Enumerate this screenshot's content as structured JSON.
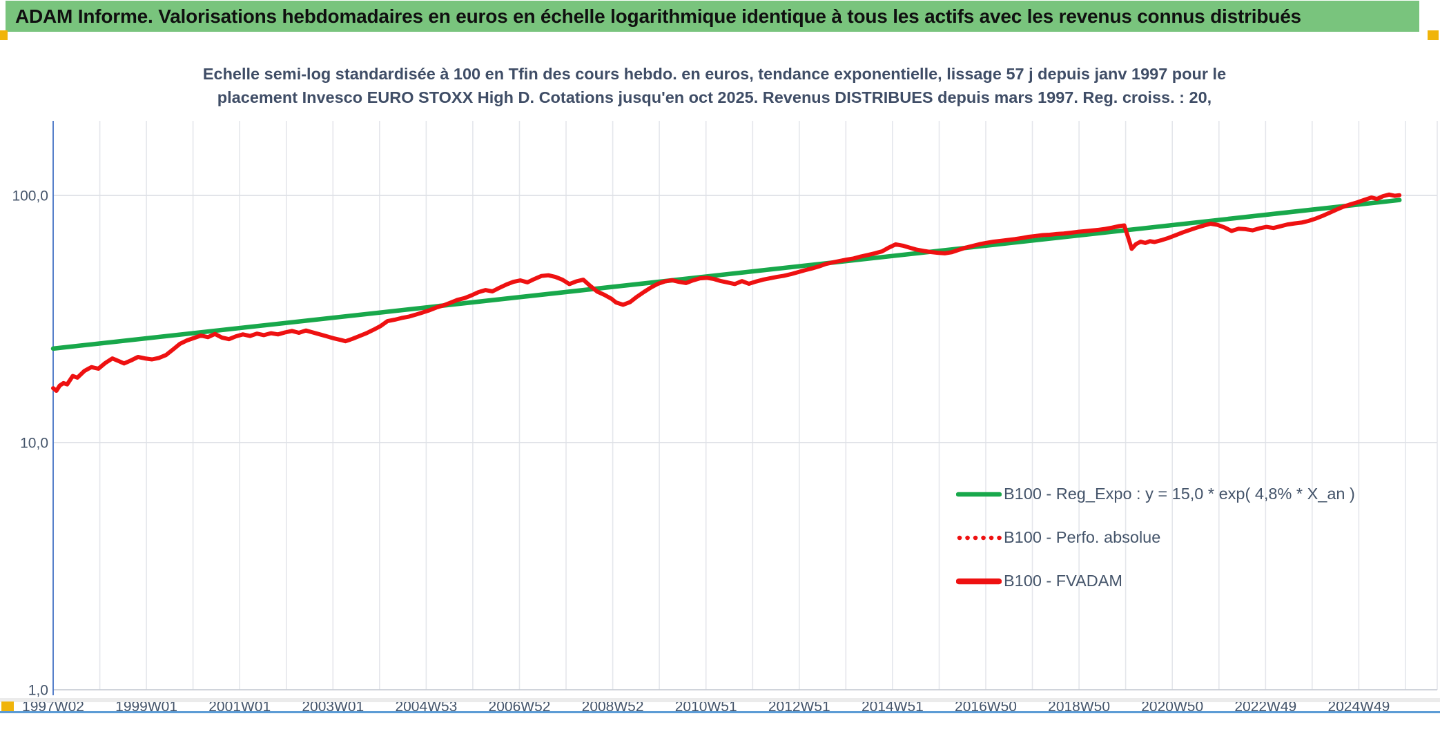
{
  "banner": {
    "text": "ADAM Informe. Valorisations hebdomadaires en euros en échelle logarithmique identique à tous les actifs avec les revenus connus distribués",
    "background_color": "#79C47D",
    "handle_color": "#F0B40A"
  },
  "chart_data": {
    "type": "line",
    "title_lines": [
      "Echelle semi-log standardisée à 100 en Tfin des cours hebdo. en euros, tendance exponentielle, lissage 57 j depuis janv 1997 pour le",
      "placement Invesco EURO STOXX High D. Cotations jusqu'en oct 2025. Revenus DISTRIBUES depuis mars 1997. Reg. croiss. : 20,"
    ],
    "grid": true,
    "legend_position": "inside-right-bottom",
    "y_axis": {
      "scale": "log",
      "range": [
        1,
        200
      ],
      "ticks": [
        {
          "label": "100,0",
          "value": 100
        },
        {
          "label": "10,0",
          "value": 10
        },
        {
          "label": "1,0",
          "value": 1
        }
      ]
    },
    "x_axis": {
      "unit": "ISO week",
      "start_year": 1997.03,
      "end_year": 2026.7,
      "gridline_interval_years": 1,
      "label_interval_years": 2,
      "tick_labels": [
        "1997W02",
        "1999W01",
        "2001W01",
        "2003W01",
        "2004W53",
        "2006W52",
        "2008W52",
        "2010W51",
        "2012W51",
        "2014W51",
        "2016W50",
        "2018W50",
        "2020W50",
        "2022W49",
        "2024W49"
      ]
    },
    "series": [
      {
        "name": "B100 - Reg_Expo : y = 15,0 * exp( 4,8% *  X_an )",
        "color": "#18A84B",
        "style": "solid",
        "width": 6.5,
        "kind": "exponential-trend",
        "points": [
          [
            1997.03,
            24.0
          ],
          [
            2025.9,
            95.8
          ]
        ]
      },
      {
        "name": "B100 - Perfo. absolue",
        "color": "#EE1111",
        "style": "dotted",
        "width": 5.5,
        "points_key": "fvadam_points",
        "note": "overlaps the FVADAM curve"
      },
      {
        "name": "B100 - FVADAM",
        "color": "#EE1111",
        "style": "solid",
        "width": 6,
        "points_key": "fvadam_points"
      }
    ],
    "fvadam_points": [
      [
        1997.03,
        16.6
      ],
      [
        1997.1,
        16.2
      ],
      [
        1997.17,
        17.0
      ],
      [
        1997.25,
        17.4
      ],
      [
        1997.33,
        17.2
      ],
      [
        1997.45,
        18.6
      ],
      [
        1997.55,
        18.3
      ],
      [
        1997.7,
        19.5
      ],
      [
        1997.85,
        20.2
      ],
      [
        1998.0,
        19.9
      ],
      [
        1998.15,
        21.0
      ],
      [
        1998.3,
        21.9
      ],
      [
        1998.45,
        21.3
      ],
      [
        1998.55,
        20.9
      ],
      [
        1998.7,
        21.5
      ],
      [
        1998.85,
        22.2
      ],
      [
        1999.0,
        21.9
      ],
      [
        1999.15,
        21.7
      ],
      [
        1999.3,
        22.0
      ],
      [
        1999.45,
        22.6
      ],
      [
        1999.6,
        23.8
      ],
      [
        1999.75,
        25.1
      ],
      [
        1999.9,
        25.9
      ],
      [
        2000.05,
        26.5
      ],
      [
        2000.2,
        27.1
      ],
      [
        2000.35,
        26.7
      ],
      [
        2000.5,
        27.5
      ],
      [
        2000.65,
        26.6
      ],
      [
        2000.8,
        26.2
      ],
      [
        2000.95,
        26.9
      ],
      [
        2001.1,
        27.4
      ],
      [
        2001.25,
        27.0
      ],
      [
        2001.4,
        27.6
      ],
      [
        2001.55,
        27.2
      ],
      [
        2001.7,
        27.7
      ],
      [
        2001.85,
        27.4
      ],
      [
        2002.0,
        27.9
      ],
      [
        2002.15,
        28.3
      ],
      [
        2002.3,
        27.8
      ],
      [
        2002.45,
        28.4
      ],
      [
        2002.6,
        27.9
      ],
      [
        2002.75,
        27.4
      ],
      [
        2002.9,
        26.9
      ],
      [
        2003.05,
        26.4
      ],
      [
        2003.2,
        26.0
      ],
      [
        2003.3,
        25.7
      ],
      [
        2003.45,
        26.3
      ],
      [
        2003.6,
        27.0
      ],
      [
        2003.75,
        27.7
      ],
      [
        2003.9,
        28.6
      ],
      [
        2004.05,
        29.6
      ],
      [
        2004.2,
        31.0
      ],
      [
        2004.35,
        31.4
      ],
      [
        2004.5,
        31.9
      ],
      [
        2004.65,
        32.3
      ],
      [
        2004.8,
        32.9
      ],
      [
        2004.95,
        33.6
      ],
      [
        2005.1,
        34.3
      ],
      [
        2005.25,
        35.2
      ],
      [
        2005.4,
        35.9
      ],
      [
        2005.55,
        36.8
      ],
      [
        2005.7,
        37.8
      ],
      [
        2005.85,
        38.4
      ],
      [
        2006.0,
        39.4
      ],
      [
        2006.15,
        40.6
      ],
      [
        2006.3,
        41.4
      ],
      [
        2006.45,
        40.9
      ],
      [
        2006.6,
        42.3
      ],
      [
        2006.75,
        43.6
      ],
      [
        2006.9,
        44.7
      ],
      [
        2007.05,
        45.3
      ],
      [
        2007.2,
        44.5
      ],
      [
        2007.35,
        45.9
      ],
      [
        2007.5,
        47.2
      ],
      [
        2007.65,
        47.5
      ],
      [
        2007.8,
        46.8
      ],
      [
        2007.95,
        45.6
      ],
      [
        2008.1,
        43.8
      ],
      [
        2008.25,
        44.9
      ],
      [
        2008.4,
        45.6
      ],
      [
        2008.55,
        43.0
      ],
      [
        2008.7,
        40.8
      ],
      [
        2008.85,
        39.6
      ],
      [
        2009.0,
        38.2
      ],
      [
        2009.1,
        36.9
      ],
      [
        2009.25,
        36.1
      ],
      [
        2009.4,
        37.0
      ],
      [
        2009.55,
        38.9
      ],
      [
        2009.7,
        40.7
      ],
      [
        2009.85,
        42.4
      ],
      [
        2010.0,
        43.9
      ],
      [
        2010.15,
        44.9
      ],
      [
        2010.3,
        45.4
      ],
      [
        2010.45,
        44.7
      ],
      [
        2010.6,
        44.2
      ],
      [
        2010.75,
        45.3
      ],
      [
        2010.9,
        46.2
      ],
      [
        2011.05,
        46.4
      ],
      [
        2011.2,
        45.9
      ],
      [
        2011.35,
        45.0
      ],
      [
        2011.5,
        44.4
      ],
      [
        2011.65,
        43.8
      ],
      [
        2011.8,
        45.0
      ],
      [
        2011.95,
        43.9
      ],
      [
        2012.1,
        44.8
      ],
      [
        2012.25,
        45.6
      ],
      [
        2012.4,
        46.2
      ],
      [
        2012.55,
        46.8
      ],
      [
        2012.7,
        47.3
      ],
      [
        2012.85,
        48.0
      ],
      [
        2013.0,
        48.9
      ],
      [
        2013.15,
        49.8
      ],
      [
        2013.3,
        50.6
      ],
      [
        2013.45,
        51.6
      ],
      [
        2013.6,
        52.8
      ],
      [
        2013.75,
        53.6
      ],
      [
        2013.9,
        54.3
      ],
      [
        2014.05,
        55.0
      ],
      [
        2014.2,
        55.6
      ],
      [
        2014.35,
        56.6
      ],
      [
        2014.5,
        57.4
      ],
      [
        2014.65,
        58.3
      ],
      [
        2014.8,
        59.3
      ],
      [
        2014.95,
        61.5
      ],
      [
        2015.1,
        63.4
      ],
      [
        2015.25,
        62.6
      ],
      [
        2015.4,
        61.4
      ],
      [
        2015.55,
        60.3
      ],
      [
        2015.7,
        59.6
      ],
      [
        2015.85,
        59.0
      ],
      [
        2016.0,
        58.6
      ],
      [
        2016.15,
        58.3
      ],
      [
        2016.3,
        58.9
      ],
      [
        2016.45,
        60.2
      ],
      [
        2016.6,
        61.5
      ],
      [
        2016.75,
        62.5
      ],
      [
        2016.9,
        63.5
      ],
      [
        2017.05,
        64.3
      ],
      [
        2017.2,
        65.0
      ],
      [
        2017.35,
        65.5
      ],
      [
        2017.5,
        66.0
      ],
      [
        2017.65,
        66.5
      ],
      [
        2017.8,
        67.2
      ],
      [
        2017.95,
        68.0
      ],
      [
        2018.1,
        68.5
      ],
      [
        2018.25,
        69.1
      ],
      [
        2018.4,
        69.3
      ],
      [
        2018.55,
        69.8
      ],
      [
        2018.7,
        70.1
      ],
      [
        2018.85,
        70.6
      ],
      [
        2019.0,
        71.2
      ],
      [
        2019.15,
        71.6
      ],
      [
        2019.3,
        72.1
      ],
      [
        2019.45,
        72.6
      ],
      [
        2019.6,
        73.2
      ],
      [
        2019.75,
        74.1
      ],
      [
        2019.9,
        75.2
      ],
      [
        2020.0,
        75.6
      ],
      [
        2020.08,
        68.0
      ],
      [
        2020.16,
        60.8
      ],
      [
        2020.25,
        63.5
      ],
      [
        2020.35,
        65.0
      ],
      [
        2020.45,
        64.2
      ],
      [
        2020.55,
        65.3
      ],
      [
        2020.65,
        64.8
      ],
      [
        2020.8,
        65.9
      ],
      [
        2020.95,
        67.3
      ],
      [
        2021.1,
        69.0
      ],
      [
        2021.25,
        70.8
      ],
      [
        2021.4,
        72.4
      ],
      [
        2021.55,
        74.0
      ],
      [
        2021.7,
        75.5
      ],
      [
        2021.85,
        76.8
      ],
      [
        2022.0,
        76.0
      ],
      [
        2022.15,
        74.2
      ],
      [
        2022.3,
        71.8
      ],
      [
        2022.45,
        73.3
      ],
      [
        2022.6,
        73.0
      ],
      [
        2022.75,
        72.2
      ],
      [
        2022.9,
        73.6
      ],
      [
        2023.05,
        74.6
      ],
      [
        2023.2,
        73.8
      ],
      [
        2023.35,
        75.0
      ],
      [
        2023.5,
        76.3
      ],
      [
        2023.65,
        77.0
      ],
      [
        2023.8,
        77.6
      ],
      [
        2023.95,
        78.8
      ],
      [
        2024.1,
        80.5
      ],
      [
        2024.25,
        82.6
      ],
      [
        2024.4,
        85.0
      ],
      [
        2024.55,
        87.6
      ],
      [
        2024.7,
        90.0
      ],
      [
        2024.85,
        92.0
      ],
      [
        2025.0,
        93.8
      ],
      [
        2025.15,
        95.9
      ],
      [
        2025.3,
        98.0
      ],
      [
        2025.42,
        96.8
      ],
      [
        2025.55,
        99.3
      ],
      [
        2025.68,
        100.8
      ],
      [
        2025.8,
        99.6
      ],
      [
        2025.9,
        100.2
      ]
    ],
    "colors": {
      "axis_line": "#4472C4",
      "gridline": "#E4E6EB",
      "axis_bottom": "#C9CED6",
      "tick_text": "#44546A"
    }
  }
}
